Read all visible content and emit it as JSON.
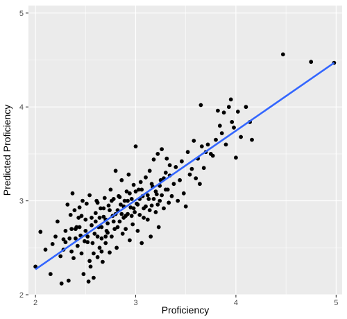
{
  "chart_data": {
    "type": "scatter",
    "xlabel": "Proficiency",
    "ylabel": "Predicted Proficiency",
    "xlim": [
      1.93,
      5.06
    ],
    "ylim": [
      2.0,
      5.08
    ],
    "x_ticks": [
      2,
      3,
      4,
      5
    ],
    "y_ticks": [
      2,
      3,
      4,
      5
    ],
    "x_tick_labels": [
      "2",
      "3",
      "4",
      "5"
    ],
    "y_tick_labels": [
      "2",
      "3",
      "4",
      "5"
    ],
    "grid": true,
    "background_color": "#ebebeb",
    "grid_color": "#ffffff",
    "point_color": "#000000",
    "fit_line": {
      "x": [
        2.0,
        4.98
      ],
      "y": [
        2.27,
        4.47
      ],
      "color": "#3366ff"
    },
    "points": [
      [
        2.0,
        2.3
      ],
      [
        2.05,
        2.67
      ],
      [
        2.1,
        2.48
      ],
      [
        2.15,
        2.22
      ],
      [
        2.17,
        2.54
      ],
      [
        2.2,
        2.62
      ],
      [
        2.22,
        2.78
      ],
      [
        2.25,
        2.41
      ],
      [
        2.26,
        2.12
      ],
      [
        2.28,
        2.59
      ],
      [
        2.3,
        2.68
      ],
      [
        2.32,
        2.96
      ],
      [
        2.33,
        2.15
      ],
      [
        2.34,
        2.6
      ],
      [
        2.35,
        2.85
      ],
      [
        2.36,
        2.46
      ],
      [
        2.37,
        3.08
      ],
      [
        2.38,
        2.39
      ],
      [
        2.39,
        2.9
      ],
      [
        2.4,
        2.7
      ],
      [
        2.41,
        2.72
      ],
      [
        2.42,
        2.52
      ],
      [
        2.43,
        2.82
      ],
      [
        2.44,
        2.93
      ],
      [
        2.45,
        2.63
      ],
      [
        2.46,
        2.44
      ],
      [
        2.47,
        3.0
      ],
      [
        2.48,
        2.22
      ],
      [
        2.49,
        2.57
      ],
      [
        2.5,
        2.8
      ],
      [
        2.51,
        2.97
      ],
      [
        2.52,
        2.62
      ],
      [
        2.53,
        2.14
      ],
      [
        2.54,
        3.06
      ],
      [
        2.55,
        2.3
      ],
      [
        2.56,
        2.74
      ],
      [
        2.57,
        2.55
      ],
      [
        2.58,
        2.18
      ],
      [
        2.59,
        2.65
      ],
      [
        2.6,
        2.87
      ],
      [
        2.61,
        3.0
      ],
      [
        2.62,
        2.4
      ],
      [
        2.63,
        2.72
      ],
      [
        2.64,
        2.5
      ],
      [
        2.65,
        2.92
      ],
      [
        2.66,
        2.6
      ],
      [
        2.67,
        2.35
      ],
      [
        2.68,
        2.83
      ],
      [
        2.69,
        3.03
      ],
      [
        2.7,
        2.55
      ],
      [
        2.71,
        2.68
      ],
      [
        2.72,
        2.76
      ],
      [
        2.73,
        2.95
      ],
      [
        2.74,
        2.45
      ],
      [
        2.75,
        3.12
      ],
      [
        2.76,
        2.62
      ],
      [
        2.77,
        2.84
      ],
      [
        2.78,
        3.02
      ],
      [
        2.79,
        2.7
      ],
      [
        2.8,
        3.32
      ],
      [
        2.81,
        2.5
      ],
      [
        2.82,
        2.9
      ],
      [
        2.83,
        3.05
      ],
      [
        2.84,
        2.78
      ],
      [
        2.85,
        2.96
      ],
      [
        2.86,
        3.22
      ],
      [
        2.87,
        2.65
      ],
      [
        2.88,
        2.82
      ],
      [
        2.89,
        3.0
      ],
      [
        2.9,
        2.7
      ],
      [
        2.91,
        3.1
      ],
      [
        2.92,
        2.86
      ],
      [
        2.93,
        3.28
      ],
      [
        2.94,
        2.58
      ],
      [
        2.95,
        2.93
      ],
      [
        2.96,
        3.02
      ],
      [
        2.97,
        2.75
      ],
      [
        2.98,
        3.17
      ],
      [
        2.99,
        2.88
      ],
      [
        3.0,
        3.58
      ],
      [
        3.01,
        2.97
      ],
      [
        3.02,
        2.68
      ],
      [
        3.03,
        3.12
      ],
      [
        3.04,
        2.85
      ],
      [
        3.05,
        3.2
      ],
      [
        3.06,
        2.55
      ],
      [
        3.07,
        3.05
      ],
      [
        3.08,
        2.92
      ],
      [
        3.1,
        3.25
      ],
      [
        3.12,
        2.8
      ],
      [
        3.13,
        3.02
      ],
      [
        3.14,
        3.32
      ],
      [
        3.15,
        2.62
      ],
      [
        3.16,
        2.95
      ],
      [
        3.17,
        3.15
      ],
      [
        3.18,
        3.44
      ],
      [
        3.2,
        2.88
      ],
      [
        3.21,
        3.07
      ],
      [
        3.22,
        3.5
      ],
      [
        3.23,
        2.72
      ],
      [
        3.24,
        3.0
      ],
      [
        3.25,
        3.22
      ],
      [
        3.26,
        3.55
      ],
      [
        3.28,
        2.92
      ],
      [
        3.3,
        3.12
      ],
      [
        3.31,
        3.45
      ],
      [
        3.33,
        2.98
      ],
      [
        3.34,
        3.27
      ],
      [
        3.36,
        3.05
      ],
      [
        3.38,
        3.18
      ],
      [
        3.4,
        3.36
      ],
      [
        3.42,
        3.0
      ],
      [
        3.44,
        3.22
      ],
      [
        3.46,
        3.42
      ],
      [
        3.48,
        3.08
      ],
      [
        3.5,
        2.94
      ],
      [
        3.52,
        3.52
      ],
      [
        3.54,
        3.28
      ],
      [
        3.56,
        3.34
      ],
      [
        3.58,
        3.64
      ],
      [
        3.6,
        3.24
      ],
      [
        3.62,
        3.45
      ],
      [
        3.64,
        3.18
      ],
      [
        3.65,
        4.02
      ],
      [
        3.66,
        3.58
      ],
      [
        3.68,
        3.35
      ],
      [
        3.7,
        3.52
      ],
      [
        3.72,
        3.6
      ],
      [
        3.75,
        3.5
      ],
      [
        3.77,
        3.48
      ],
      [
        3.8,
        3.65
      ],
      [
        3.82,
        3.96
      ],
      [
        3.84,
        3.8
      ],
      [
        3.86,
        3.72
      ],
      [
        3.88,
        3.94
      ],
      [
        3.9,
        3.6
      ],
      [
        3.93,
        4.0
      ],
      [
        3.95,
        4.08
      ],
      [
        3.96,
        3.84
      ],
      [
        3.98,
        3.78
      ],
      [
        4.0,
        3.46
      ],
      [
        4.02,
        3.95
      ],
      [
        4.05,
        3.68
      ],
      [
        4.1,
        4.0
      ],
      [
        4.14,
        3.84
      ],
      [
        4.16,
        3.65
      ],
      [
        4.47,
        4.56
      ],
      [
        4.75,
        4.48
      ],
      [
        4.98,
        4.47
      ],
      [
        2.3,
        2.56
      ],
      [
        2.4,
        2.6
      ],
      [
        2.5,
        2.68
      ],
      [
        2.58,
        2.44
      ],
      [
        2.6,
        2.78
      ],
      [
        2.62,
        2.98
      ],
      [
        2.64,
        2.82
      ],
      [
        2.66,
        2.72
      ],
      [
        2.68,
        2.92
      ],
      [
        2.7,
        2.8
      ],
      [
        2.72,
        2.66
      ],
      [
        2.74,
        2.9
      ],
      [
        2.76,
        3.0
      ],
      [
        2.78,
        2.78
      ],
      [
        2.8,
        2.86
      ],
      [
        2.82,
        2.72
      ],
      [
        2.84,
        3.04
      ],
      [
        2.86,
        2.86
      ],
      [
        2.88,
        2.94
      ],
      [
        2.9,
        2.84
      ],
      [
        2.92,
        3.0
      ],
      [
        2.94,
        3.08
      ],
      [
        2.96,
        2.84
      ],
      [
        2.98,
        2.92
      ],
      [
        3.0,
        3.1
      ],
      [
        3.02,
        2.96
      ],
      [
        3.04,
        3.02
      ],
      [
        3.06,
        3.12
      ],
      [
        3.08,
        2.82
      ],
      [
        3.1,
        2.94
      ],
      [
        3.12,
        3.06
      ],
      [
        3.14,
        2.9
      ],
      [
        3.16,
        3.18
      ],
      [
        3.18,
        3.02
      ],
      [
        3.2,
        3.1
      ],
      [
        3.22,
        2.96
      ],
      [
        3.24,
        3.16
      ],
      [
        3.26,
        3.06
      ],
      [
        3.28,
        3.24
      ],
      [
        3.3,
        3.3
      ],
      [
        3.32,
        3.12
      ],
      [
        3.34,
        3.38
      ],
      [
        2.52,
        2.56
      ],
      [
        2.54,
        2.36
      ],
      [
        2.56,
        2.82
      ],
      [
        2.62,
        2.62
      ],
      [
        2.66,
        2.46
      ],
      [
        2.7,
        2.62
      ],
      [
        2.44,
        2.72
      ],
      [
        2.46,
        2.84
      ],
      [
        2.36,
        2.7
      ],
      [
        2.28,
        2.48
      ]
    ]
  }
}
